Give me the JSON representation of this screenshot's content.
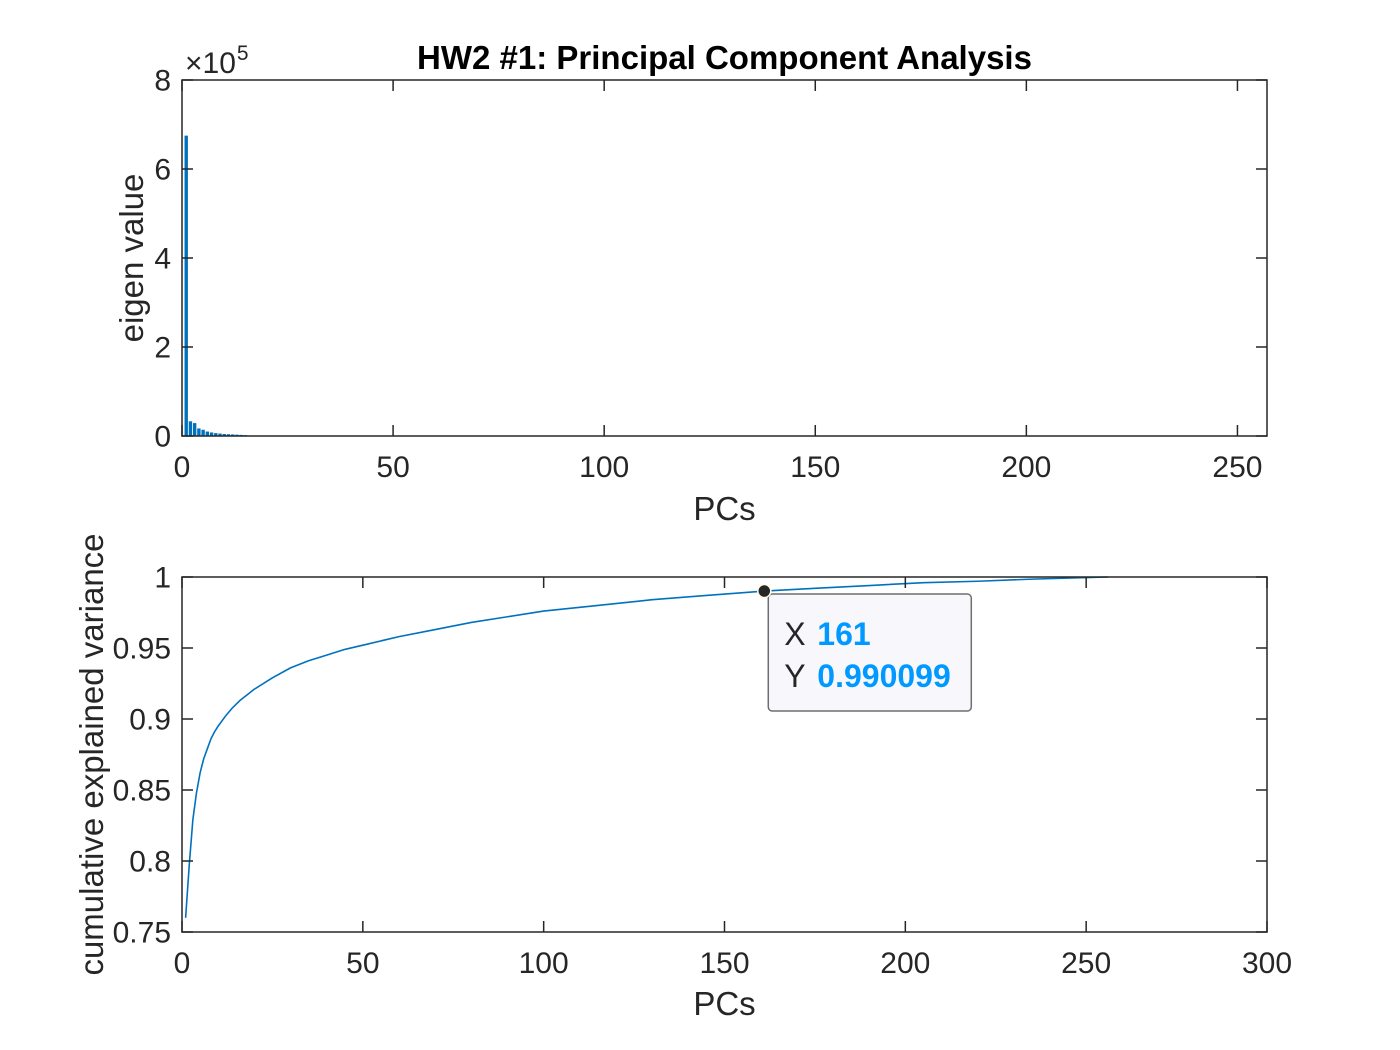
{
  "figure": {
    "background": "#ffffff",
    "axes_color": "#262626",
    "title_color": "#000000"
  },
  "chart_data": [
    {
      "type": "bar",
      "title": "HW2 #1: Principal Component Analysis",
      "xlabel": "PCs",
      "ylabel": "eigen value",
      "xlim": [
        0,
        257
      ],
      "ylim": [
        0,
        800000
      ],
      "xticks": [
        0,
        50,
        100,
        150,
        200,
        250
      ],
      "xtick_labels": [
        "0",
        "50",
        "100",
        "150",
        "200",
        "250"
      ],
      "yticks": [
        0,
        200000,
        400000,
        600000,
        800000
      ],
      "ytick_labels": [
        "0",
        "2",
        "4",
        "6",
        "8"
      ],
      "y_multiplier_base": "×10",
      "y_multiplier_exponent": "5",
      "grid": false,
      "color": "#0072BD",
      "x": [
        1,
        2,
        3,
        4,
        5,
        6,
        7,
        8,
        9,
        10,
        11,
        12,
        13,
        14,
        15
      ],
      "values": [
        675000,
        33000,
        29000,
        17000,
        14000,
        10000,
        8000,
        6500,
        5500,
        4500,
        4000,
        3500,
        3000,
        2500,
        2000
      ]
    },
    {
      "type": "line",
      "xlabel": "PCs",
      "ylabel": "cumulative explained variance",
      "xlim": [
        0,
        300
      ],
      "ylim": [
        0.75,
        1
      ],
      "xticks": [
        0,
        50,
        100,
        150,
        200,
        250,
        300
      ],
      "xtick_labels": [
        "0",
        "50",
        "100",
        "150",
        "200",
        "250",
        "300"
      ],
      "yticks": [
        0.75,
        0.8,
        0.85,
        0.9,
        0.95,
        1
      ],
      "ytick_labels": [
        "0.75",
        "0.8",
        "0.85",
        "0.9",
        "0.95",
        "1"
      ],
      "grid": false,
      "color": "#0072BD",
      "x": [
        1,
        2,
        3,
        4,
        5,
        6,
        7,
        8,
        9,
        10,
        12,
        14,
        16,
        18,
        20,
        25,
        30,
        35,
        40,
        45,
        50,
        60,
        70,
        80,
        90,
        100,
        115,
        130,
        145,
        161,
        175,
        190,
        205,
        220,
        235,
        250,
        256
      ],
      "y": [
        0.76,
        0.797,
        0.829,
        0.848,
        0.862,
        0.872,
        0.879,
        0.886,
        0.891,
        0.895,
        0.902,
        0.908,
        0.913,
        0.917,
        0.921,
        0.929,
        0.936,
        0.941,
        0.945,
        0.949,
        0.952,
        0.958,
        0.963,
        0.968,
        0.972,
        0.976,
        0.98,
        0.984,
        0.987,
        0.990099,
        0.992,
        0.994,
        0.996,
        0.997,
        0.9985,
        0.9996,
        1.0
      ],
      "datatip": {
        "x": 161,
        "y": 0.990099,
        "x_label": "X",
        "x_value": "161",
        "y_label": "Y",
        "y_value": "0.990099",
        "value_color": "#0099FF",
        "marker_color": "#262626"
      }
    }
  ]
}
